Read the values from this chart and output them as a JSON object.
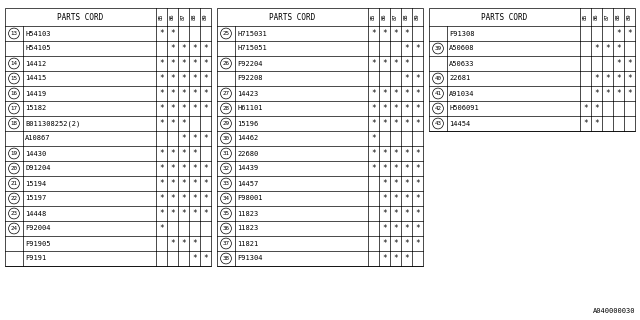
{
  "footer": "A040000030",
  "bg_color": "#ffffff",
  "text_color": "#000000",
  "col_headers": [
    "85",
    "86",
    "87",
    "88",
    "89"
  ],
  "tables": [
    {
      "rows": [
        {
          "num": "13",
          "parts": [
            {
              "part": "H54103",
              "marks": [
                1,
                1,
                0,
                0,
                0
              ]
            },
            {
              "part": "H54105",
              "marks": [
                0,
                1,
                1,
                1,
                1
              ]
            }
          ]
        },
        {
          "num": "14",
          "parts": [
            {
              "part": "14412",
              "marks": [
                1,
                1,
                1,
                1,
                1
              ]
            }
          ]
        },
        {
          "num": "15",
          "parts": [
            {
              "part": "14415",
              "marks": [
                1,
                1,
                1,
                1,
                1
              ]
            }
          ]
        },
        {
          "num": "16",
          "parts": [
            {
              "part": "14419",
              "marks": [
                1,
                1,
                1,
                1,
                1
              ]
            }
          ]
        },
        {
          "num": "17",
          "parts": [
            {
              "part": "15182",
              "marks": [
                1,
                1,
                1,
                1,
                1
              ]
            }
          ]
        },
        {
          "num": "18",
          "parts": [
            {
              "part": "B011308252(2)",
              "marks": [
                1,
                1,
                1,
                0,
                0
              ]
            },
            {
              "part": "A10867",
              "marks": [
                0,
                0,
                1,
                1,
                1
              ]
            }
          ]
        },
        {
          "num": "19",
          "parts": [
            {
              "part": "14430",
              "marks": [
                1,
                1,
                1,
                1,
                0
              ]
            }
          ]
        },
        {
          "num": "20",
          "parts": [
            {
              "part": "D91204",
              "marks": [
                1,
                1,
                1,
                1,
                1
              ]
            }
          ]
        },
        {
          "num": "21",
          "parts": [
            {
              "part": "15194",
              "marks": [
                1,
                1,
                1,
                1,
                1
              ]
            }
          ]
        },
        {
          "num": "22",
          "parts": [
            {
              "part": "15197",
              "marks": [
                1,
                1,
                1,
                1,
                1
              ]
            }
          ]
        },
        {
          "num": "23",
          "parts": [
            {
              "part": "14448",
              "marks": [
                1,
                1,
                1,
                1,
                1
              ]
            }
          ]
        },
        {
          "num": "24",
          "parts": [
            {
              "part": "F92004",
              "marks": [
                1,
                0,
                0,
                0,
                0
              ]
            },
            {
              "part": "F91905",
              "marks": [
                0,
                1,
                1,
                1,
                0
              ]
            },
            {
              "part": "F9191",
              "marks": [
                0,
                0,
                0,
                1,
                1
              ]
            }
          ]
        }
      ]
    },
    {
      "rows": [
        {
          "num": "25",
          "parts": [
            {
              "part": "H715031",
              "marks": [
                1,
                1,
                1,
                1,
                0
              ]
            },
            {
              "part": "H715051",
              "marks": [
                0,
                0,
                0,
                1,
                1
              ]
            }
          ]
        },
        {
          "num": "26",
          "parts": [
            {
              "part": "F92204",
              "marks": [
                1,
                1,
                1,
                1,
                0
              ]
            },
            {
              "part": "F92208",
              "marks": [
                0,
                0,
                0,
                1,
                1
              ]
            }
          ]
        },
        {
          "num": "27",
          "parts": [
            {
              "part": "14423",
              "marks": [
                1,
                1,
                1,
                1,
                1
              ]
            }
          ]
        },
        {
          "num": "28",
          "parts": [
            {
              "part": "H61101",
              "marks": [
                1,
                1,
                1,
                1,
                1
              ]
            }
          ]
        },
        {
          "num": "29",
          "parts": [
            {
              "part": "15196",
              "marks": [
                1,
                1,
                1,
                1,
                1
              ]
            }
          ]
        },
        {
          "num": "30",
          "parts": [
            {
              "part": "14462",
              "marks": [
                1,
                0,
                0,
                0,
                0
              ]
            }
          ]
        },
        {
          "num": "31",
          "parts": [
            {
              "part": "22680",
              "marks": [
                1,
                1,
                1,
                1,
                1
              ]
            }
          ]
        },
        {
          "num": "32",
          "parts": [
            {
              "part": "14439",
              "marks": [
                1,
                1,
                1,
                1,
                1
              ]
            }
          ]
        },
        {
          "num": "33",
          "parts": [
            {
              "part": "14457",
              "marks": [
                0,
                1,
                1,
                1,
                1
              ]
            }
          ]
        },
        {
          "num": "34",
          "parts": [
            {
              "part": "F98001",
              "marks": [
                0,
                1,
                1,
                1,
                1
              ]
            }
          ]
        },
        {
          "num": "35",
          "parts": [
            {
              "part": "11823",
              "marks": [
                0,
                1,
                1,
                1,
                1
              ]
            }
          ]
        },
        {
          "num": "36",
          "parts": [
            {
              "part": "11823",
              "marks": [
                0,
                1,
                1,
                1,
                1
              ]
            }
          ]
        },
        {
          "num": "37",
          "parts": [
            {
              "part": "11821",
              "marks": [
                0,
                1,
                1,
                1,
                1
              ]
            }
          ]
        },
        {
          "num": "38",
          "parts": [
            {
              "part": "F91304",
              "marks": [
                0,
                1,
                1,
                1,
                0
              ]
            }
          ]
        }
      ]
    },
    {
      "rows": [
        {
          "num": "",
          "parts": [
            {
              "part": "F91308",
              "marks": [
                0,
                0,
                0,
                1,
                1
              ]
            }
          ]
        },
        {
          "num": "39",
          "parts": [
            {
              "part": "A50608",
              "marks": [
                0,
                1,
                1,
                1,
                0
              ]
            },
            {
              "part": "A50633",
              "marks": [
                0,
                0,
                0,
                1,
                1
              ]
            }
          ]
        },
        {
          "num": "40",
          "parts": [
            {
              "part": "22681",
              "marks": [
                0,
                1,
                1,
                1,
                1
              ]
            }
          ]
        },
        {
          "num": "41",
          "parts": [
            {
              "part": "A91034",
              "marks": [
                0,
                1,
                1,
                1,
                1
              ]
            }
          ]
        },
        {
          "num": "42",
          "parts": [
            {
              "part": "H506091",
              "marks": [
                1,
                1,
                0,
                0,
                0
              ]
            }
          ]
        },
        {
          "num": "43",
          "parts": [
            {
              "part": "14454",
              "marks": [
                1,
                1,
                0,
                0,
                0
              ]
            }
          ]
        }
      ]
    }
  ]
}
